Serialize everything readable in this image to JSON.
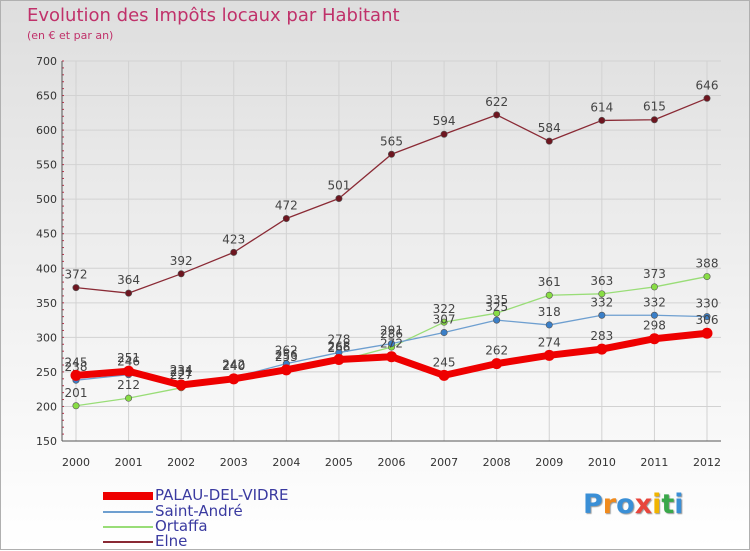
{
  "header": {
    "title": "Evolution des Impôts locaux par Habitant",
    "subtitle": "(en € et par an)"
  },
  "logo": {
    "text": "Proxiti"
  },
  "chart_data": {
    "type": "line",
    "title": "Evolution des Impôts locaux par Habitant",
    "ylabel": "(en € et par an)",
    "xlabel": "",
    "x": [
      2000,
      2001,
      2002,
      2003,
      2004,
      2005,
      2006,
      2007,
      2008,
      2009,
      2010,
      2011,
      2012
    ],
    "ylim": [
      150,
      700
    ],
    "yticks": [
      150,
      200,
      250,
      300,
      350,
      400,
      450,
      500,
      550,
      600,
      650,
      700
    ],
    "grid": true,
    "legend_position": "bottom-left",
    "series": [
      {
        "name": "Elne",
        "color": "#8a2a35",
        "values": [
          372,
          364,
          392,
          423,
          472,
          501,
          565,
          594,
          622,
          584,
          614,
          615,
          646
        ]
      },
      {
        "name": "Ortaffa",
        "color": "#99dd77",
        "values": [
          201,
          212,
          227,
          240,
          256,
          266,
          286,
          322,
          335,
          361,
          363,
          373,
          388
        ]
      },
      {
        "name": "Saint-André",
        "color": "#6e9fd0",
        "values": [
          238,
          246,
          234,
          242,
          262,
          278,
          291,
          307,
          325,
          318,
          332,
          332,
          330
        ]
      },
      {
        "name": "PALAU-DEL-VIDRE",
        "color": "#ee0000",
        "values": [
          245,
          251,
          231,
          240,
          253,
          268,
          272,
          245,
          262,
          274,
          283,
          298,
          306
        ]
      }
    ]
  }
}
